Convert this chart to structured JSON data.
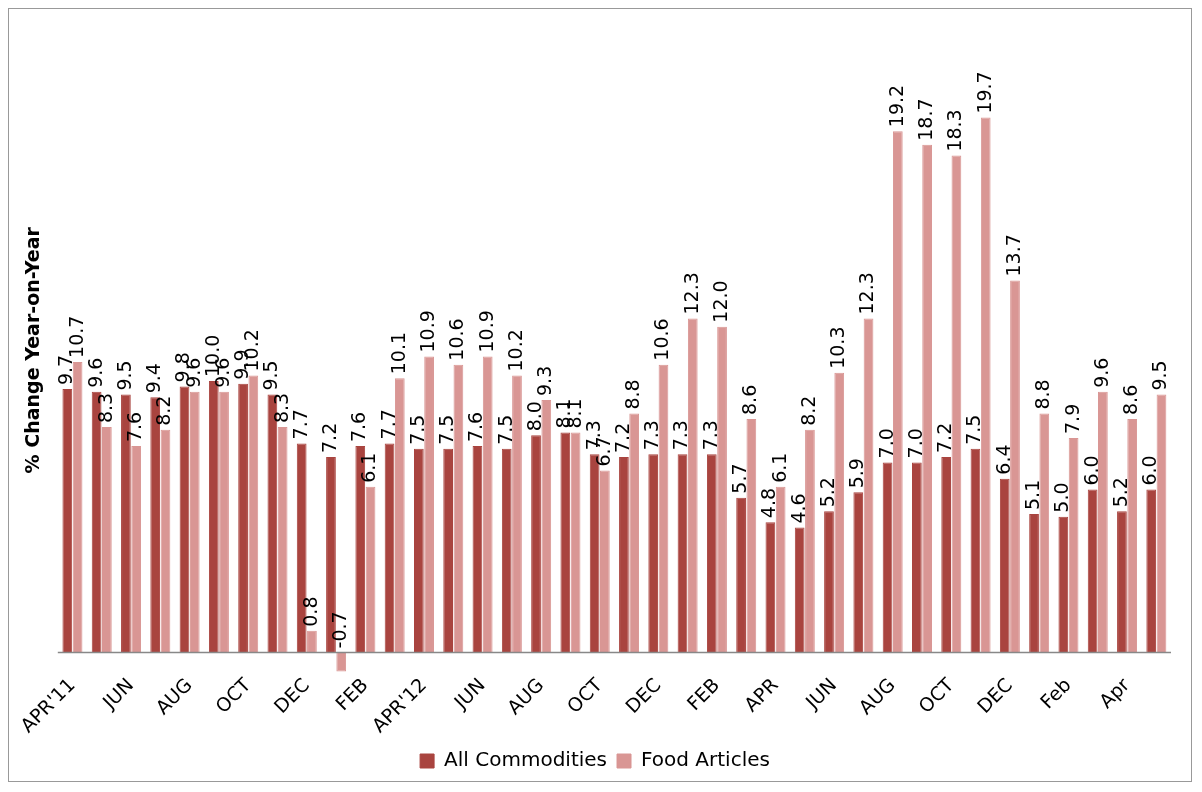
{
  "chart_data": {
    "type": "bar",
    "ylabel": "% Change Year-on-Year",
    "categories": [
      "APR'11",
      null,
      "JUN",
      null,
      "AUG",
      null,
      "OCT",
      null,
      "DEC",
      null,
      "FEB",
      null,
      "APR'12",
      null,
      "JUN",
      null,
      "AUG",
      null,
      "OCT",
      null,
      "DEC",
      null,
      "FEB",
      null,
      "APR",
      null,
      "JUN",
      null,
      "AUG",
      null,
      "OCT",
      null,
      "DEC",
      null,
      "Feb",
      null,
      "Apr",
      null
    ],
    "series": [
      {
        "name": "All Commodities",
        "color": "#a9443f",
        "values": [
          9.7,
          9.6,
          9.5,
          9.4,
          9.8,
          10.0,
          9.9,
          9.5,
          7.7,
          7.2,
          7.6,
          7.7,
          7.5,
          7.5,
          7.6,
          7.5,
          8.0,
          8.1,
          7.3,
          7.2,
          7.3,
          7.3,
          7.3,
          5.7,
          4.8,
          4.6,
          5.2,
          5.9,
          7.0,
          7.0,
          7.2,
          7.5,
          6.4,
          5.1,
          5.0,
          6.0,
          5.2,
          6.0
        ],
        "value_labels": [
          "9.7",
          "9.6",
          "9.5",
          "9.4",
          "9.8",
          "10.0",
          "9.9",
          "9.5",
          "7.7",
          "7.2",
          "7.6",
          "7.7",
          "7.5",
          "7.5",
          "7.6",
          "7.5",
          "8.0",
          "8.1",
          "7.3",
          "7.2",
          "7.3",
          "7.3",
          "7.3",
          "5.7",
          "4.8",
          "4.6",
          "5.2",
          "5.9",
          "7.0",
          "7.0",
          "7.2",
          "7.5",
          "6.4",
          "5.1",
          "5.0",
          "6.0",
          "5.2",
          "6.0"
        ]
      },
      {
        "name": "Food Articles",
        "color": "#d99694",
        "values": [
          10.7,
          8.3,
          7.6,
          8.2,
          9.6,
          9.6,
          10.2,
          8.3,
          0.8,
          -0.7,
          6.1,
          10.1,
          10.9,
          10.6,
          10.9,
          10.2,
          9.3,
          8.1,
          6.7,
          8.8,
          10.6,
          12.3,
          12.0,
          8.6,
          6.1,
          8.2,
          10.3,
          12.3,
          19.2,
          18.7,
          18.3,
          19.7,
          13.7,
          8.8,
          7.9,
          9.6,
          8.6,
          9.5
        ],
        "value_labels": [
          "10.7",
          "8.3",
          "7.6",
          "8.2",
          "9.6",
          "9.6",
          "10.2",
          "8.3",
          "0.8",
          "-0.7",
          "6.1",
          "10.1",
          "10.9",
          "10.6",
          "10.9",
          "10.2",
          "9.3",
          "8.1",
          "6.7",
          "8.8",
          "10.6",
          "12.3",
          "12.0",
          "8.6",
          "6.1",
          "8.2",
          "10.3",
          "12.3",
          "19.2",
          "18.7",
          "18.3",
          "19.7",
          "13.7",
          "8.8",
          "7.9",
          "9.6",
          "8.6",
          "9.5"
        ]
      }
    ],
    "legend": "bottom",
    "grid": false
  }
}
